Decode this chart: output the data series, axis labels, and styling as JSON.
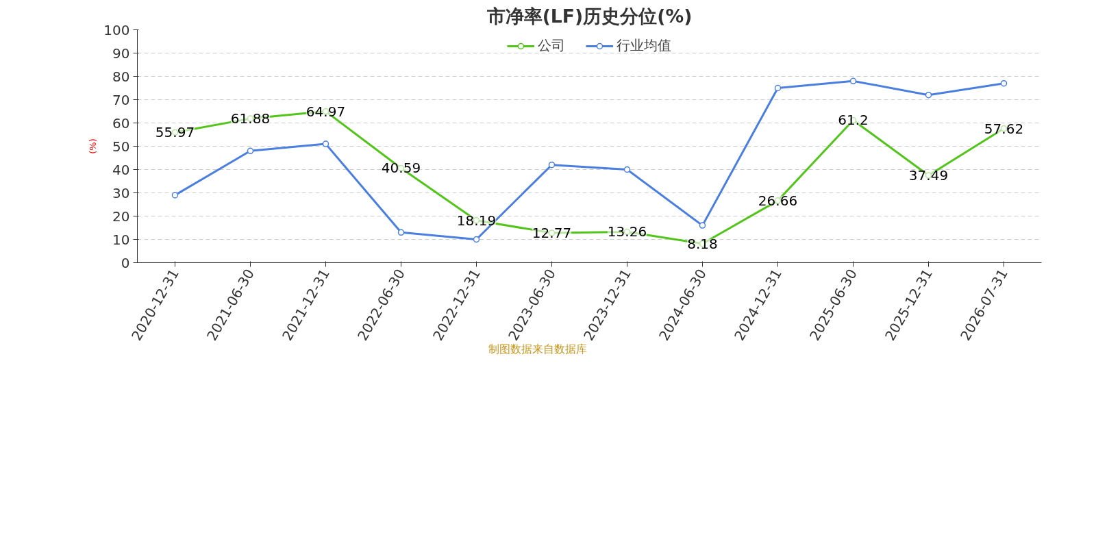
{
  "chart_data": {
    "type": "line",
    "title": "市净率(LF)历史分位(%)",
    "ylabel": "(%)",
    "categories": [
      "2020-12-31",
      "2021-06-30",
      "2021-12-31",
      "2022-06-30",
      "2022-12-31",
      "2023-06-30",
      "2023-12-31",
      "2024-06-30",
      "2024-12-31",
      "2025-06-30",
      "2025-12-31",
      "2026-07-31"
    ],
    "series": [
      {
        "name": "公司",
        "color": "#52c41a",
        "values": [
          55.97,
          61.88,
          64.97,
          40.59,
          18.19,
          12.77,
          13.26,
          8.18,
          26.66,
          61.2,
          37.49,
          57.62
        ],
        "data_labels": true
      },
      {
        "name": "行业均值",
        "color": "#4a7fe0",
        "values": [
          29,
          48,
          51,
          13,
          10,
          42,
          40,
          16,
          75,
          78,
          72,
          77
        ]
      }
    ],
    "ylim": [
      0,
      100
    ],
    "yticks": [
      0,
      10,
      20,
      30,
      40,
      50,
      60,
      70,
      80,
      90,
      100
    ],
    "grid": "y",
    "legend": "top",
    "marker": "circle",
    "line_style": "solid",
    "annotations": [
      "制图数据来自数据库"
    ]
  }
}
